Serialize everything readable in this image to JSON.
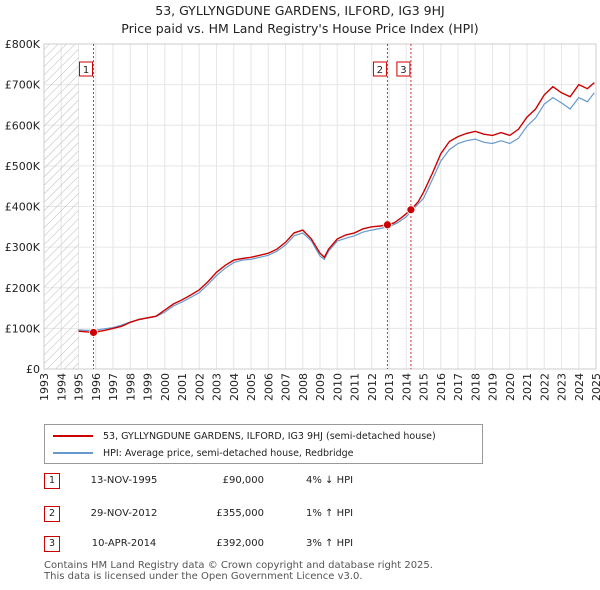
{
  "chart_data": {
    "type": "line",
    "title": "53, GYLLYNGDUNE GARDENS, ILFORD, IG3 9HJ",
    "subtitle": "Price paid vs. HM Land Registry's House Price Index (HPI)",
    "xlabel": "",
    "ylabel": "",
    "xlim": [
      1993,
      2025
    ],
    "ylim": [
      0,
      800000
    ],
    "y_ticks": [
      0,
      100000,
      200000,
      300000,
      400000,
      500000,
      600000,
      700000,
      800000
    ],
    "y_tick_labels": [
      "£0",
      "£100K",
      "£200K",
      "£300K",
      "£400K",
      "£500K",
      "£600K",
      "£700K",
      "£800K"
    ],
    "x_ticks": [
      1993,
      1994,
      1995,
      1996,
      1997,
      1998,
      1999,
      2000,
      2001,
      2002,
      2003,
      2004,
      2005,
      2006,
      2007,
      2008,
      2009,
      2010,
      2011,
      2012,
      2013,
      2014,
      2015,
      2016,
      2017,
      2018,
      2019,
      2020,
      2021,
      2022,
      2023,
      2024,
      2025
    ],
    "x_tick_labels": [
      "1993",
      "1994",
      "1995",
      "1996",
      "1997",
      "1998",
      "1999",
      "2000",
      "2001",
      "2002",
      "2003",
      "2004",
      "2005",
      "2006",
      "2007",
      "2008",
      "2009",
      "2010",
      "2011",
      "2012",
      "2013",
      "2014",
      "2015",
      "2016",
      "2017",
      "2018",
      "2019",
      "2020",
      "2021",
      "2022",
      "2023",
      "2024",
      "2025"
    ],
    "hatched_until": 1995.0,
    "series": [
      {
        "name": "53, GYLLYNGDUNE GARDENS, ILFORD, IG3 9HJ (semi-detached house)",
        "color": "#cc0000",
        "x": [
          1995.0,
          1995.87,
          1996.5,
          1997.0,
          1997.5,
          1998.0,
          1998.5,
          1999.0,
          1999.5,
          2000.0,
          2000.5,
          2001.0,
          2001.5,
          2002.0,
          2002.5,
          2003.0,
          2003.5,
          2004.0,
          2004.5,
          2005.0,
          2005.5,
          2006.0,
          2006.5,
          2007.0,
          2007.5,
          2008.0,
          2008.5,
          2009.0,
          2009.25,
          2009.5,
          2010.0,
          2010.5,
          2011.0,
          2011.5,
          2012.0,
          2012.5,
          2012.91,
          2013.3,
          2013.7,
          2014.27,
          2014.7,
          2015.0,
          2015.5,
          2016.0,
          2016.5,
          2017.0,
          2017.5,
          2018.0,
          2018.5,
          2019.0,
          2019.5,
          2020.0,
          2020.5,
          2021.0,
          2021.5,
          2022.0,
          2022.5,
          2023.0,
          2023.5,
          2024.0,
          2024.5,
          2024.9
        ],
        "y": [
          93000,
          90000,
          95000,
          100000,
          105000,
          115000,
          122000,
          126000,
          130000,
          145000,
          160000,
          170000,
          182000,
          195000,
          215000,
          238000,
          255000,
          268000,
          272000,
          275000,
          280000,
          285000,
          295000,
          312000,
          335000,
          342000,
          320000,
          285000,
          275000,
          295000,
          320000,
          330000,
          335000,
          345000,
          350000,
          352000,
          355000,
          360000,
          372000,
          392000,
          412000,
          435000,
          480000,
          530000,
          560000,
          572000,
          580000,
          585000,
          578000,
          575000,
          582000,
          575000,
          590000,
          620000,
          640000,
          675000,
          695000,
          680000,
          670000,
          700000,
          690000,
          705000
        ]
      },
      {
        "name": "HPI: Average price, semi-detached house, Redbridge",
        "color": "#6699cc",
        "x": [
          1995.0,
          1995.5,
          1996.0,
          1996.5,
          1997.0,
          1997.5,
          1998.0,
          1998.5,
          1999.0,
          1999.5,
          2000.0,
          2000.5,
          2001.0,
          2001.5,
          2002.0,
          2002.5,
          2003.0,
          2003.5,
          2004.0,
          2004.5,
          2005.0,
          2005.5,
          2006.0,
          2006.5,
          2007.0,
          2007.5,
          2008.0,
          2008.5,
          2009.0,
          2009.25,
          2009.5,
          2010.0,
          2010.5,
          2011.0,
          2011.5,
          2012.0,
          2012.5,
          2013.0,
          2013.5,
          2014.0,
          2014.5,
          2015.0,
          2015.5,
          2016.0,
          2016.5,
          2017.0,
          2017.5,
          2018.0,
          2018.5,
          2019.0,
          2019.5,
          2020.0,
          2020.5,
          2021.0,
          2021.5,
          2022.0,
          2022.5,
          2023.0,
          2023.5,
          2024.0,
          2024.5,
          2024.9
        ],
        "y": [
          96000,
          95000,
          95500,
          99000,
          102000,
          108000,
          116000,
          121000,
          125000,
          129000,
          140000,
          155000,
          165000,
          176000,
          188000,
          208000,
          230000,
          248000,
          262000,
          268000,
          270000,
          275000,
          280000,
          290000,
          305000,
          328000,
          335000,
          315000,
          278000,
          270000,
          290000,
          315000,
          322000,
          328000,
          337000,
          342000,
          346000,
          350000,
          360000,
          375000,
          398000,
          420000,
          465000,
          512000,
          540000,
          555000,
          562000,
          566000,
          558000,
          555000,
          562000,
          555000,
          568000,
          598000,
          618000,
          652000,
          668000,
          655000,
          640000,
          668000,
          658000,
          680000
        ]
      }
    ],
    "markers": [
      {
        "label": "1",
        "x": 1995.87,
        "y": 90000
      },
      {
        "label": "2",
        "x": 2012.91,
        "y": 355000
      },
      {
        "label": "3",
        "x": 2014.27,
        "y": 392000
      }
    ]
  },
  "legend": {
    "property_label": "53, GYLLYNGDUNE GARDENS, ILFORD, IG3 9HJ (semi-detached house)",
    "hpi_label": "HPI: Average price, semi-detached house, Redbridge"
  },
  "sales": [
    {
      "num": "1",
      "date": "13-NOV-1995",
      "price": "£90,000",
      "hpi": "4% ↓ HPI"
    },
    {
      "num": "2",
      "date": "29-NOV-2012",
      "price": "£355,000",
      "hpi": "1% ↑ HPI"
    },
    {
      "num": "3",
      "date": "10-APR-2014",
      "price": "£392,000",
      "hpi": "3% ↑ HPI"
    }
  ],
  "footer": {
    "line1": "Contains HM Land Registry data © Crown copyright and database right 2025.",
    "line2": "This data is licensed under the Open Government Licence v3.0."
  },
  "colors": {
    "property": "#cc0000",
    "hpi": "#6699cc",
    "marker_line": "#cc0000"
  }
}
